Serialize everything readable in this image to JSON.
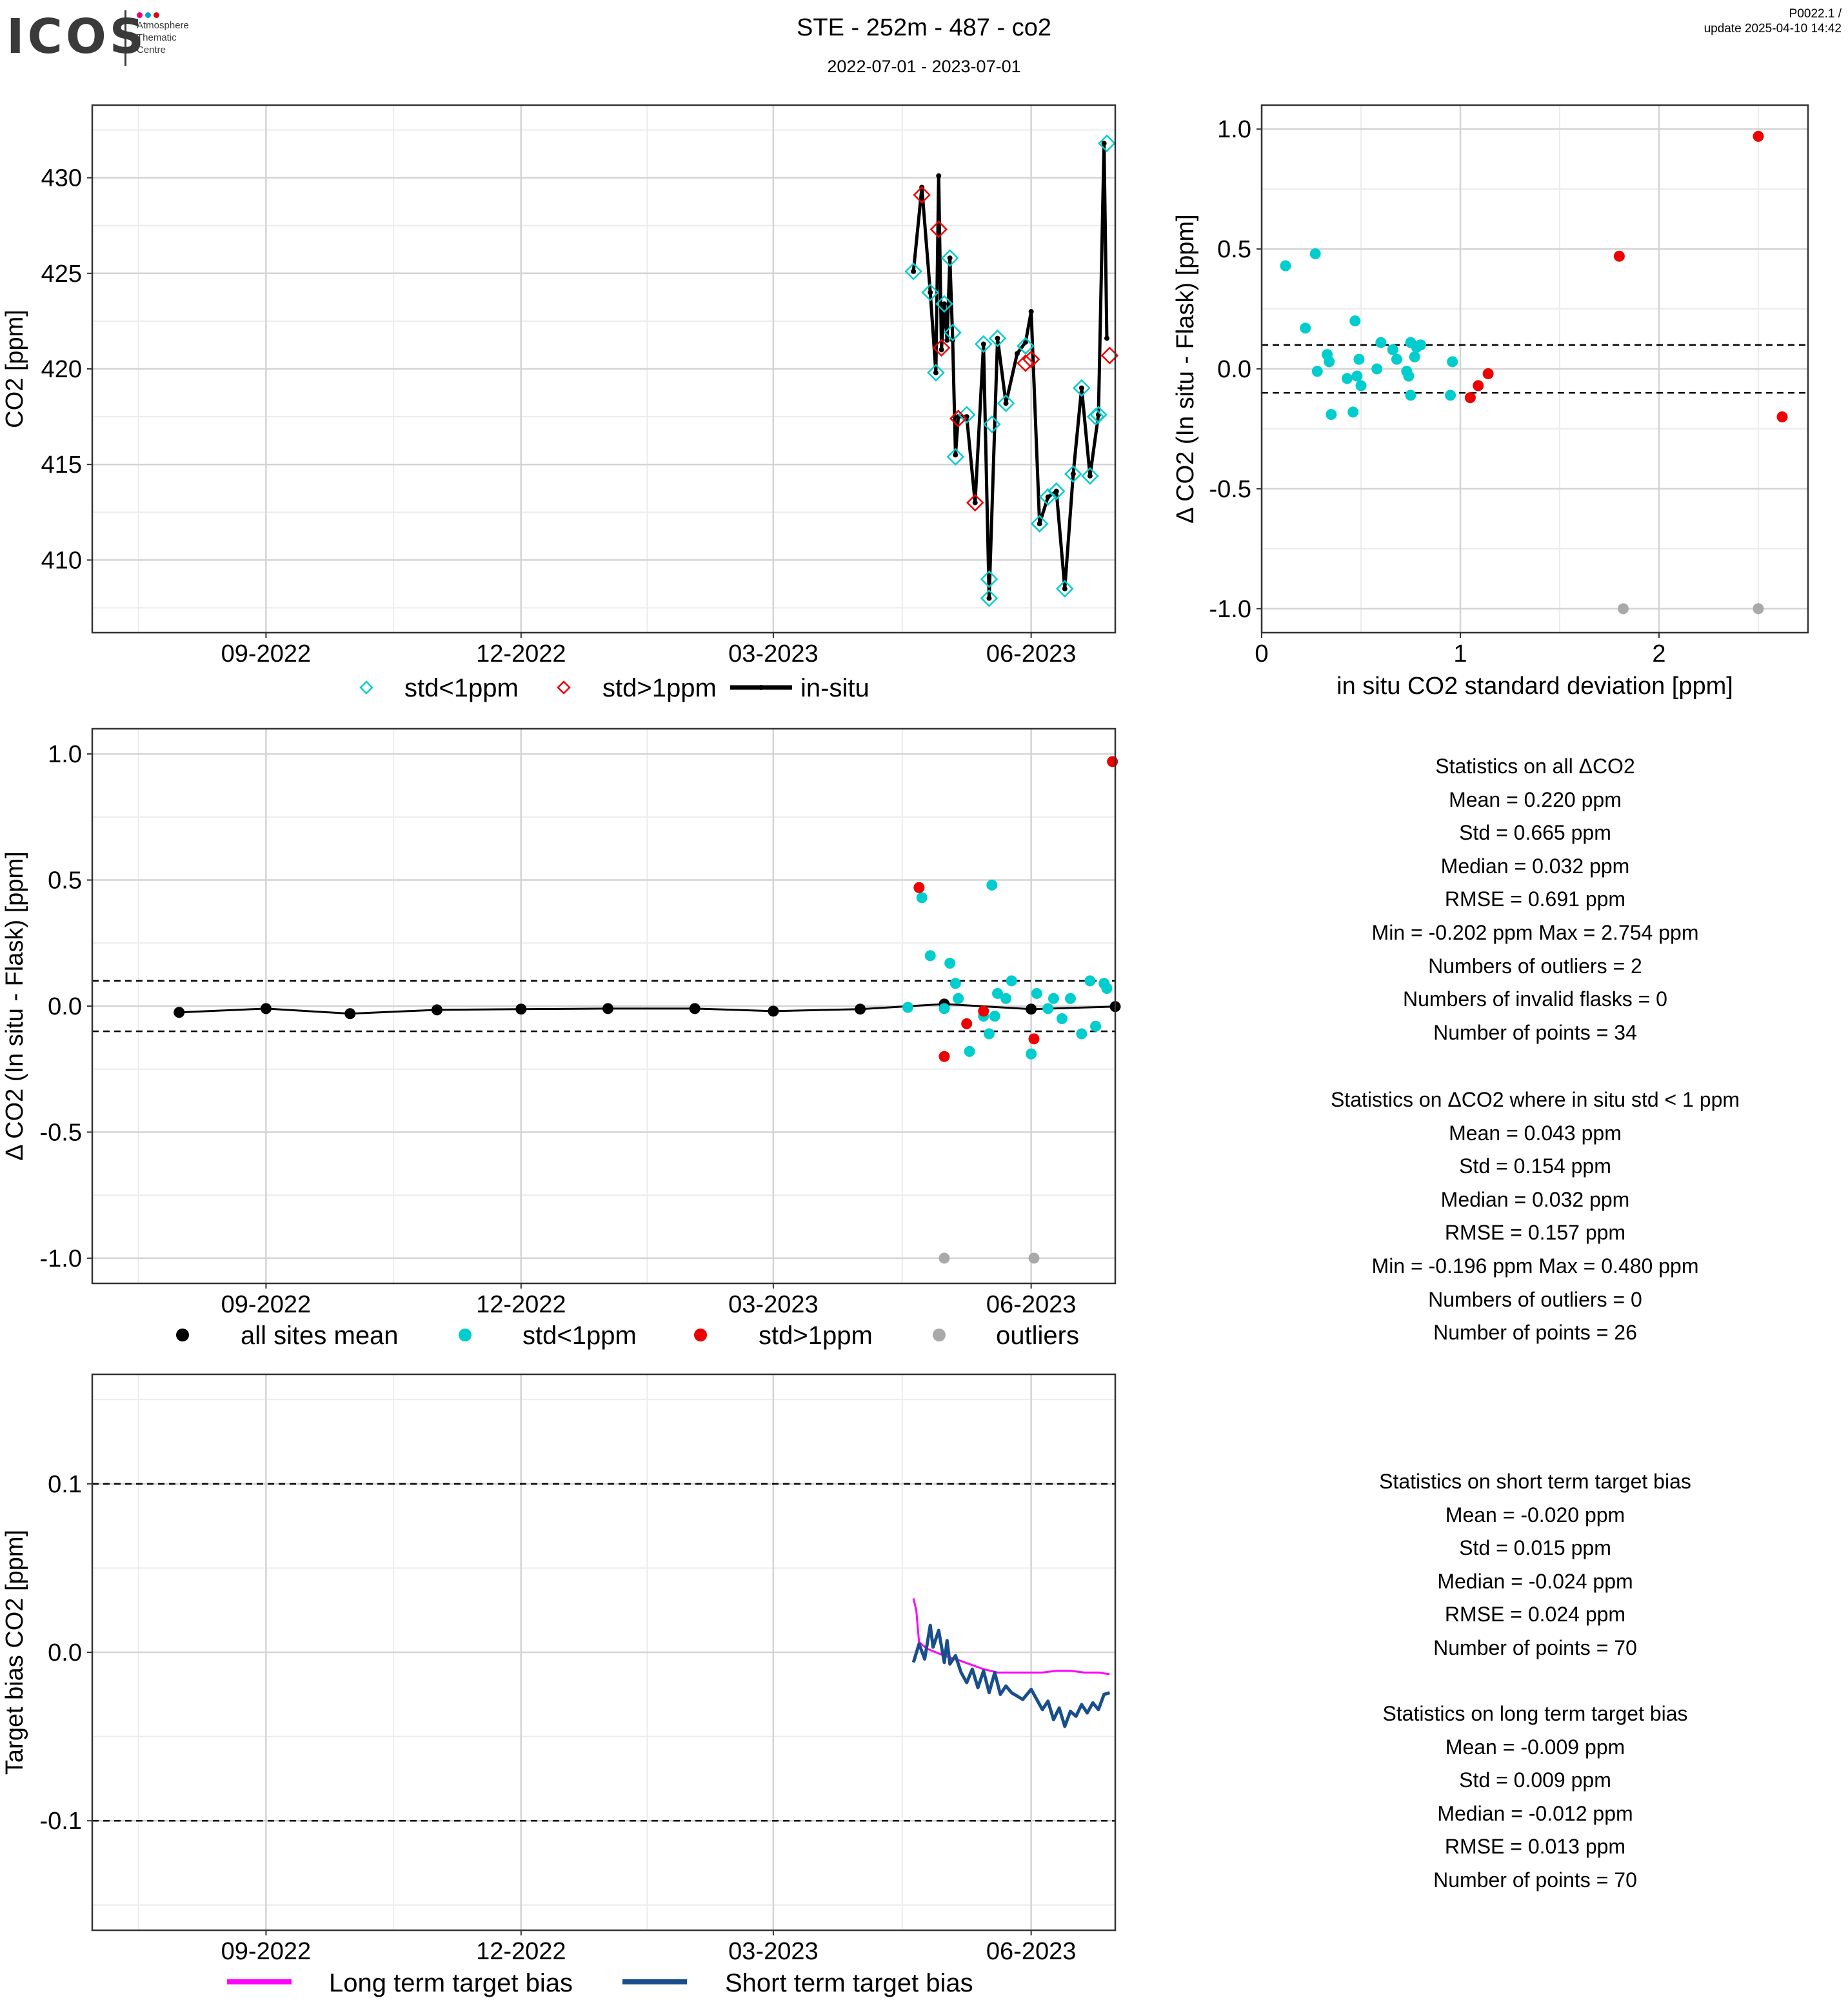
{
  "header": {
    "logo": "ICOS",
    "logo_subtitle": "Atmosphere\nThematic\nCentre",
    "title": "STE - 252m - 487 - co2",
    "date_range": "2022-07-01 - 2023-07-01",
    "version": "P0022.1 /",
    "update": "update  2025-04-10 14:42",
    "logo_dot_colors": [
      "#e6007e",
      "#009fe3",
      "#e30613"
    ]
  },
  "colors": {
    "std_lt1": "#00CDCD",
    "std_gt1": "#EE0000",
    "outlier": "#A9A9A9",
    "insitu": "#000000",
    "long_term": "#FF00FF",
    "short_term": "#184E8C"
  },
  "chart_data": [
    {
      "id": "co2_timeseries",
      "type": "line",
      "xlabel": "",
      "ylabel": "CO2 [ppm]",
      "x_ticks": [
        "09-2022",
        "12-2022",
        "03-2023",
        "06-2023"
      ],
      "x_tick_dates": [
        "2022-09-01",
        "2022-12-01",
        "2023-03-01",
        "2023-06-01"
      ],
      "xlim": [
        "2022-07-01",
        "2023-07-01"
      ],
      "ylim": [
        406.2,
        433.8
      ],
      "y_ticks": [
        410,
        415,
        420,
        425,
        430
      ],
      "legend": [
        "std<1ppm",
        "std>1ppm",
        "in-situ"
      ],
      "insitu": [
        {
          "x": "2023-04-20",
          "y": 425.1
        },
        {
          "x": "2023-04-23",
          "y": 429.5
        },
        {
          "x": "2023-04-26",
          "y": 424.0
        },
        {
          "x": "2023-04-28",
          "y": 419.8
        },
        {
          "x": "2023-04-29",
          "y": 430.1
        },
        {
          "x": "2023-04-30",
          "y": 421.0
        },
        {
          "x": "2023-05-01",
          "y": 423.4
        },
        {
          "x": "2023-05-02",
          "y": 421.5
        },
        {
          "x": "2023-05-03",
          "y": 425.8
        },
        {
          "x": "2023-05-04",
          "y": 421.5
        },
        {
          "x": "2023-05-05",
          "y": 415.5
        },
        {
          "x": "2023-05-06",
          "y": 417.5
        },
        {
          "x": "2023-05-09",
          "y": 417.5
        },
        {
          "x": "2023-05-12",
          "y": 413.0
        },
        {
          "x": "2023-05-15",
          "y": 421.3
        },
        {
          "x": "2023-05-17",
          "y": 408.0
        },
        {
          "x": "2023-05-20",
          "y": 421.6
        },
        {
          "x": "2023-05-23",
          "y": 418.2
        },
        {
          "x": "2023-05-27",
          "y": 420.8
        },
        {
          "x": "2023-05-30",
          "y": 421.4
        },
        {
          "x": "2023-06-01",
          "y": 423.0
        },
        {
          "x": "2023-06-04",
          "y": 411.9
        },
        {
          "x": "2023-06-07",
          "y": 413.3
        },
        {
          "x": "2023-06-10",
          "y": 413.6
        },
        {
          "x": "2023-06-13",
          "y": 408.5
        },
        {
          "x": "2023-06-16",
          "y": 414.5
        },
        {
          "x": "2023-06-19",
          "y": 419.0
        },
        {
          "x": "2023-06-22",
          "y": 414.4
        },
        {
          "x": "2023-06-25",
          "y": 417.6
        },
        {
          "x": "2023-06-27",
          "y": 431.8
        },
        {
          "x": "2023-06-28",
          "y": 421.6
        }
      ],
      "flask_std_lt1": [
        {
          "x": "2023-04-20",
          "y": 425.1
        },
        {
          "x": "2023-04-26",
          "y": 424.0
        },
        {
          "x": "2023-04-28",
          "y": 419.8
        },
        {
          "x": "2023-05-01",
          "y": 423.4
        },
        {
          "x": "2023-05-03",
          "y": 425.8
        },
        {
          "x": "2023-05-04",
          "y": 421.9
        },
        {
          "x": "2023-05-05",
          "y": 415.4
        },
        {
          "x": "2023-05-09",
          "y": 417.6
        },
        {
          "x": "2023-05-15",
          "y": 421.3
        },
        {
          "x": "2023-05-17",
          "y": 409.0
        },
        {
          "x": "2023-05-17",
          "y": 408.0
        },
        {
          "x": "2023-05-18",
          "y": 417.1
        },
        {
          "x": "2023-05-20",
          "y": 421.6
        },
        {
          "x": "2023-05-23",
          "y": 418.2
        },
        {
          "x": "2023-05-30",
          "y": 421.2
        },
        {
          "x": "2023-06-04",
          "y": 411.9
        },
        {
          "x": "2023-06-07",
          "y": 413.3
        },
        {
          "x": "2023-06-10",
          "y": 413.6
        },
        {
          "x": "2023-06-13",
          "y": 408.5
        },
        {
          "x": "2023-06-16",
          "y": 414.5
        },
        {
          "x": "2023-06-19",
          "y": 419.0
        },
        {
          "x": "2023-06-22",
          "y": 414.4
        },
        {
          "x": "2023-06-25",
          "y": 417.6
        },
        {
          "x": "2023-06-24",
          "y": 417.5
        },
        {
          "x": "2023-06-28",
          "y": 431.8
        }
      ],
      "flask_std_gt1": [
        {
          "x": "2023-04-23",
          "y": 429.1
        },
        {
          "x": "2023-04-29",
          "y": 427.3
        },
        {
          "x": "2023-04-30",
          "y": 421.1
        },
        {
          "x": "2023-05-06",
          "y": 417.4
        },
        {
          "x": "2023-05-12",
          "y": 413.0
        },
        {
          "x": "2023-05-30",
          "y": 420.3
        },
        {
          "x": "2023-06-01",
          "y": 420.5
        },
        {
          "x": "2023-06-29",
          "y": 420.7
        }
      ]
    },
    {
      "id": "delta_vs_std",
      "type": "scatter",
      "xlabel": "in situ CO2 standard deviation [ppm]",
      "ylabel": "Δ CO2 (In situ - Flask) [ppm]",
      "xlim": [
        0,
        2.75
      ],
      "ylim": [
        -1.1,
        1.1
      ],
      "x_ticks": [
        0,
        1,
        2
      ],
      "y_ticks": [
        -1.0,
        -0.5,
        0.0,
        0.5,
        1.0
      ],
      "y_tick_labels": [
        "-1.0",
        "-0.5",
        "0.0",
        "0.5",
        "1.0"
      ],
      "ref_lines": [
        0.1,
        -0.1
      ],
      "std_lt1": [
        {
          "x": 0.12,
          "y": 0.43
        },
        {
          "x": 0.22,
          "y": 0.17
        },
        {
          "x": 0.27,
          "y": 0.48
        },
        {
          "x": 0.28,
          "y": -0.01
        },
        {
          "x": 0.33,
          "y": 0.06
        },
        {
          "x": 0.34,
          "y": 0.03
        },
        {
          "x": 0.35,
          "y": -0.19
        },
        {
          "x": 0.43,
          "y": -0.04
        },
        {
          "x": 0.46,
          "y": -0.18
        },
        {
          "x": 0.47,
          "y": 0.2
        },
        {
          "x": 0.48,
          "y": -0.03
        },
        {
          "x": 0.49,
          "y": 0.04
        },
        {
          "x": 0.5,
          "y": -0.07
        },
        {
          "x": 0.58,
          "y": 0.0
        },
        {
          "x": 0.6,
          "y": 0.11
        },
        {
          "x": 0.66,
          "y": 0.08
        },
        {
          "x": 0.68,
          "y": 0.04
        },
        {
          "x": 0.73,
          "y": -0.01
        },
        {
          "x": 0.74,
          "y": -0.03
        },
        {
          "x": 0.75,
          "y": -0.11
        },
        {
          "x": 0.75,
          "y": 0.11
        },
        {
          "x": 0.77,
          "y": 0.05
        },
        {
          "x": 0.78,
          "y": 0.09
        },
        {
          "x": 0.95,
          "y": -0.11
        },
        {
          "x": 0.96,
          "y": 0.03
        },
        {
          "x": 0.8,
          "y": 0.1
        }
      ],
      "std_gt1": [
        {
          "x": 1.05,
          "y": -0.12
        },
        {
          "x": 1.09,
          "y": -0.07
        },
        {
          "x": 1.14,
          "y": -0.02
        },
        {
          "x": 1.8,
          "y": 0.47
        },
        {
          "x": 2.5,
          "y": 0.97
        },
        {
          "x": 2.62,
          "y": -0.2
        }
      ],
      "outliers": [
        {
          "x": 1.82,
          "y": -1.0
        },
        {
          "x": 2.5,
          "y": -1.0
        }
      ]
    },
    {
      "id": "delta_timeseries",
      "type": "scatter",
      "xlabel": "",
      "ylabel": "Δ CO2 (In situ - Flask) [ppm]",
      "x_ticks": [
        "09-2022",
        "12-2022",
        "03-2023",
        "06-2023"
      ],
      "x_tick_dates": [
        "2022-09-01",
        "2022-12-01",
        "2023-03-01",
        "2023-06-01"
      ],
      "xlim": [
        "2022-07-01",
        "2023-07-01"
      ],
      "ylim": [
        -1.1,
        1.1
      ],
      "y_ticks": [
        -1.0,
        -0.5,
        0.0,
        0.5,
        1.0
      ],
      "y_tick_labels": [
        "-1.0",
        "-0.5",
        "0.0",
        "0.5",
        "1.0"
      ],
      "ref_lines": [
        0.1,
        -0.1
      ],
      "legend": [
        "all sites mean",
        "std<1ppm",
        "std>1ppm",
        "outliers"
      ],
      "all_sites_mean": [
        {
          "x": "2022-08-01",
          "y": -0.025
        },
        {
          "x": "2022-09-01",
          "y": -0.01
        },
        {
          "x": "2022-10-01",
          "y": -0.03
        },
        {
          "x": "2022-11-01",
          "y": -0.015
        },
        {
          "x": "2022-12-01",
          "y": -0.012
        },
        {
          "x": "2023-01-01",
          "y": -0.01
        },
        {
          "x": "2023-02-01",
          "y": -0.01
        },
        {
          "x": "2023-03-01",
          "y": -0.02
        },
        {
          "x": "2023-04-01",
          "y": -0.012
        },
        {
          "x": "2023-05-01",
          "y": 0.008
        },
        {
          "x": "2023-06-01",
          "y": -0.012
        },
        {
          "x": "2023-07-01",
          "y": -0.002
        }
      ],
      "std_lt1": [
        {
          "x": "2023-04-18",
          "y": -0.005
        },
        {
          "x": "2023-04-23",
          "y": 0.43
        },
        {
          "x": "2023-04-26",
          "y": 0.2
        },
        {
          "x": "2023-05-01",
          "y": -0.01
        },
        {
          "x": "2023-05-03",
          "y": 0.17
        },
        {
          "x": "2023-05-05",
          "y": 0.09
        },
        {
          "x": "2023-05-06",
          "y": 0.03
        },
        {
          "x": "2023-05-10",
          "y": -0.18
        },
        {
          "x": "2023-05-15",
          "y": -0.04
        },
        {
          "x": "2023-05-17",
          "y": -0.11
        },
        {
          "x": "2023-05-18",
          "y": 0.48
        },
        {
          "x": "2023-05-19",
          "y": -0.04
        },
        {
          "x": "2023-05-20",
          "y": 0.05
        },
        {
          "x": "2023-05-23",
          "y": 0.03
        },
        {
          "x": "2023-05-25",
          "y": 0.1
        },
        {
          "x": "2023-06-01",
          "y": -0.19
        },
        {
          "x": "2023-06-03",
          "y": 0.05
        },
        {
          "x": "2023-06-07",
          "y": -0.01
        },
        {
          "x": "2023-06-09",
          "y": 0.03
        },
        {
          "x": "2023-06-12",
          "y": -0.05
        },
        {
          "x": "2023-06-15",
          "y": 0.03
        },
        {
          "x": "2023-06-19",
          "y": -0.11
        },
        {
          "x": "2023-06-22",
          "y": 0.1
        },
        {
          "x": "2023-06-24",
          "y": -0.08
        },
        {
          "x": "2023-06-27",
          "y": 0.09
        },
        {
          "x": "2023-06-28",
          "y": 0.07
        }
      ],
      "std_gt1": [
        {
          "x": "2023-04-22",
          "y": 0.47
        },
        {
          "x": "2023-05-01",
          "y": -0.2
        },
        {
          "x": "2023-05-09",
          "y": -0.07
        },
        {
          "x": "2023-05-15",
          "y": -0.02
        },
        {
          "x": "2023-06-02",
          "y": -0.13
        },
        {
          "x": "2023-06-30",
          "y": 0.97
        }
      ],
      "outliers": [
        {
          "x": "2023-05-01",
          "y": -1.0
        },
        {
          "x": "2023-06-02",
          "y": -1.0
        }
      ]
    },
    {
      "id": "target_bias",
      "type": "line",
      "xlabel": "",
      "ylabel": "Target bias CO2 [ppm]",
      "x_ticks": [
        "09-2022",
        "12-2022",
        "03-2023",
        "06-2023"
      ],
      "x_tick_dates": [
        "2022-09-01",
        "2022-12-01",
        "2023-03-01",
        "2023-06-01"
      ],
      "xlim": [
        "2022-07-01",
        "2023-07-01"
      ],
      "ylim": [
        -0.165,
        0.165
      ],
      "y_ticks": [
        -0.1,
        0.0,
        0.1
      ],
      "y_tick_labels": [
        "-0.1",
        "0.0",
        "0.1"
      ],
      "ref_lines": [
        0.1,
        -0.1
      ],
      "legend": [
        "Long term target bias",
        "Short term target bias"
      ],
      "series": [
        {
          "name": "Long term target bias",
          "x": [
            "2023-04-20",
            "2023-04-21",
            "2023-04-22",
            "2023-04-25",
            "2023-04-28",
            "2023-05-01",
            "2023-05-05",
            "2023-05-10",
            "2023-05-15",
            "2023-05-20",
            "2023-05-25",
            "2023-06-01",
            "2023-06-05",
            "2023-06-10",
            "2023-06-15",
            "2023-06-20",
            "2023-06-25",
            "2023-06-29"
          ],
          "values": [
            0.032,
            0.025,
            0.006,
            0.002,
            0.0,
            -0.002,
            -0.004,
            -0.007,
            -0.01,
            -0.012,
            -0.012,
            -0.012,
            -0.012,
            -0.011,
            -0.011,
            -0.012,
            -0.012,
            -0.013
          ]
        },
        {
          "name": "Short term target bias",
          "x": [
            "2023-04-20",
            "2023-04-22",
            "2023-04-24",
            "2023-04-26",
            "2023-04-27",
            "2023-04-29",
            "2023-05-01",
            "2023-05-02",
            "2023-05-03",
            "2023-05-05",
            "2023-05-07",
            "2023-05-09",
            "2023-05-11",
            "2023-05-13",
            "2023-05-15",
            "2023-05-17",
            "2023-05-19",
            "2023-05-21",
            "2023-05-23",
            "2023-05-25",
            "2023-05-27",
            "2023-05-29",
            "2023-06-01",
            "2023-06-03",
            "2023-06-05",
            "2023-06-07",
            "2023-06-09",
            "2023-06-11",
            "2023-06-13",
            "2023-06-15",
            "2023-06-17",
            "2023-06-19",
            "2023-06-21",
            "2023-06-23",
            "2023-06-25",
            "2023-06-27",
            "2023-06-29"
          ],
          "values": [
            -0.006,
            0.005,
            -0.004,
            0.016,
            0.003,
            0.013,
            -0.006,
            0.007,
            -0.007,
            -0.002,
            -0.012,
            -0.018,
            -0.01,
            -0.021,
            -0.011,
            -0.024,
            -0.012,
            -0.025,
            -0.02,
            -0.024,
            -0.026,
            -0.028,
            -0.022,
            -0.028,
            -0.034,
            -0.029,
            -0.04,
            -0.033,
            -0.044,
            -0.035,
            -0.038,
            -0.031,
            -0.036,
            -0.03,
            -0.034,
            -0.025,
            -0.024
          ]
        }
      ]
    }
  ],
  "stats_panels": {
    "all": {
      "lines": [
        "Statistics on all ΔCO2",
        "Mean =  0.220 ppm",
        "Std =  0.665 ppm",
        "Median =  0.032 ppm",
        "RMSE =  0.691 ppm",
        "Min =  -0.202 ppm Max =  2.754 ppm",
        "Numbers of outliers =  2",
        "Numbers of invalid flasks =  0",
        "Number of points =  34"
      ]
    },
    "std_lt1": {
      "lines": [
        "Statistics on ΔCO2 where in situ std < 1 ppm",
        "Mean =  0.043 ppm",
        "Std =  0.154 ppm",
        "Median =  0.032 ppm",
        "RMSE =  0.157 ppm",
        "Min =  -0.196 ppm Max =  0.480 ppm",
        "Numbers of outliers =  0",
        "Number of points =  26"
      ]
    },
    "short_term": {
      "lines": [
        "Statistics on short term target bias",
        "Mean =  -0.020 ppm",
        "Std =  0.015 ppm",
        "Median =  -0.024 ppm",
        "RMSE =  0.024 ppm",
        "Number of points =  70"
      ]
    },
    "long_term": {
      "lines": [
        "Statistics on long term target bias",
        "Mean =  -0.009 ppm",
        "Std =  0.009 ppm",
        "Median =  -0.012 ppm",
        "RMSE =  0.013 ppm",
        "Number of points =  70"
      ]
    }
  }
}
